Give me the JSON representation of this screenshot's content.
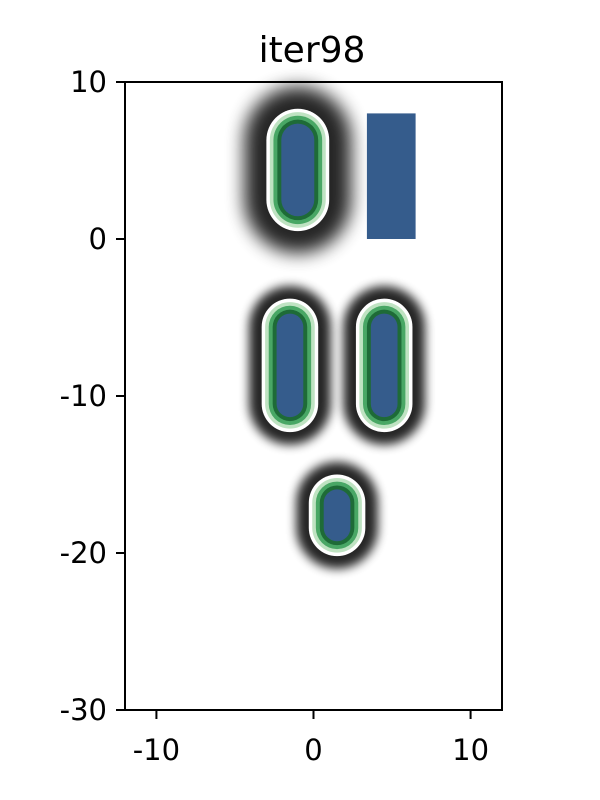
{
  "chart_data": {
    "type": "heatmap",
    "title": "iter98",
    "xlabel": "",
    "ylabel": "",
    "xlim": [
      -12,
      12
    ],
    "ylim": [
      -30,
      10
    ],
    "xticks": [
      -10,
      0,
      10
    ],
    "yticks": [
      -30,
      -20,
      -10,
      0,
      10
    ],
    "xtick_labels": [
      "-10",
      "0",
      "10"
    ],
    "ytick_labels": [
      "-30",
      "-20",
      "-10",
      "0",
      "10"
    ],
    "grid": false,
    "colors": {
      "fill": "#355C8C",
      "ring_dark": "#1E6B37",
      "ring_mid": "#49A765",
      "ring_light": "#BFE3C2",
      "halo": "#000000"
    },
    "shapes": [
      {
        "kind": "capsule",
        "x": [
          -3.0,
          1.0
        ],
        "y": [
          0.5,
          8.3
        ],
        "halo": 1.4
      },
      {
        "kind": "rect",
        "x": [
          3.4,
          6.5
        ],
        "y": [
          0.0,
          8.0
        ]
      },
      {
        "kind": "capsule",
        "x": [
          -3.3,
          0.3
        ],
        "y": [
          -12.3,
          -3.8
        ],
        "halo": 0.8
      },
      {
        "kind": "capsule",
        "x": [
          2.7,
          6.3
        ],
        "y": [
          -12.3,
          -3.8
        ],
        "halo": 0.8
      },
      {
        "kind": "capsule",
        "x": [
          -0.3,
          3.3
        ],
        "y": [
          -20.2,
          -15.0
        ],
        "halo": 0.8
      }
    ]
  }
}
